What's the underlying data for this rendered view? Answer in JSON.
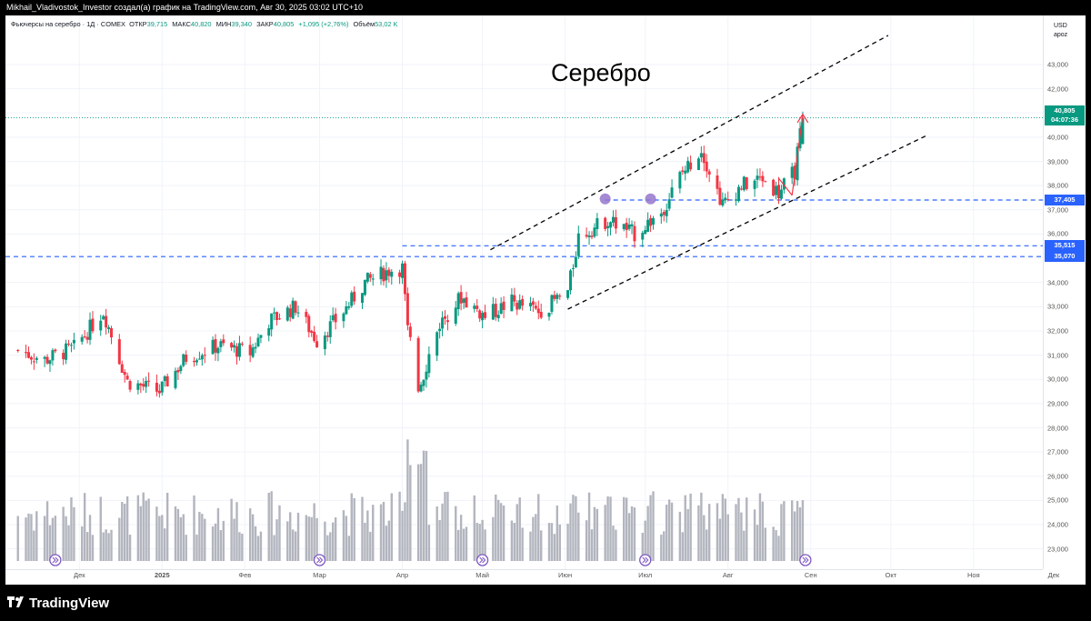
{
  "header": {
    "text": "Mikhail_Vladivostok_Investor создал(а) график на TradingView.com, Авг 30, 2025 03:02 UTC+10"
  },
  "legend": {
    "symbol": "Фьючерсы на серебро · 1Д · COMEX",
    "open_label": "ОТКР",
    "open": "39,715",
    "high_label": "МАКС",
    "high": "40,820",
    "low_label": "МИН",
    "low": "39,340",
    "close_label": "ЗАКР",
    "close": "40,805",
    "change": "+1,095 (+2,76%)",
    "volume_label": "Объём",
    "volume": "53,02 K"
  },
  "currency": {
    "code": "USD",
    "unit": "apoz"
  },
  "last_price": {
    "price": "40,805",
    "countdown": "04:07:36"
  },
  "annotation_title": "Серебро",
  "footer": {
    "brand": "TradingView"
  },
  "colors": {
    "up": "#089981",
    "down": "#f23645",
    "volume": "#b2b5be",
    "level": "#2962ff",
    "channel": "#000000",
    "arrow": "#f23645",
    "marker": "#9575cd"
  },
  "chart_data": {
    "type": "candlestick",
    "instrument": "Silver futures, COMEX, 1D",
    "y_axis": {
      "range": [
        22.5,
        44.2
      ],
      "ticks": [
        "23,000",
        "24,000",
        "25,000",
        "26,000",
        "27,000",
        "28,000",
        "29,000",
        "30,000",
        "31,000",
        "32,000",
        "33,000",
        "34,000",
        "35,000",
        "36,000",
        "37,000",
        "38,000",
        "39,000",
        "40,000",
        "41,000",
        "42,000",
        "43,000"
      ]
    },
    "x_axis": {
      "ticks": [
        "Дек",
        "2025",
        "Фев",
        "Мар",
        "Апр",
        "Май",
        "Июн",
        "Июл",
        "Авг",
        "Сен",
        "Окт",
        "Ноя",
        "Дек"
      ]
    },
    "price_levels": [
      {
        "label": "37,405",
        "value": 37.405
      },
      {
        "label": "35,515",
        "value": 35.515
      },
      {
        "label": "35,070",
        "value": 35.07
      }
    ],
    "close_path": [
      {
        "date": "2024-11-08",
        "close": 31.2
      },
      {
        "date": "2024-11-18",
        "close": 30.8
      },
      {
        "date": "2024-11-29",
        "close": 31.3
      },
      {
        "date": "2024-12-10",
        "close": 32.8
      },
      {
        "date": "2024-12-19",
        "close": 29.9
      },
      {
        "date": "2024-12-31",
        "close": 29.5
      },
      {
        "date": "2025-01-10",
        "close": 30.9
      },
      {
        "date": "2025-01-22",
        "close": 31.4
      },
      {
        "date": "2025-02-03",
        "close": 31.1
      },
      {
        "date": "2025-02-10",
        "close": 32.4
      },
      {
        "date": "2025-02-20",
        "close": 33.0
      },
      {
        "date": "2025-02-28",
        "close": 31.6
      },
      {
        "date": "2025-03-10",
        "close": 32.8
      },
      {
        "date": "2025-03-18",
        "close": 34.0
      },
      {
        "date": "2025-03-27",
        "close": 34.5
      },
      {
        "date": "2025-04-01",
        "close": 34.6
      },
      {
        "date": "2025-04-03",
        "close": 32.0
      },
      {
        "date": "2025-04-07",
        "close": 29.6
      },
      {
        "date": "2025-04-15",
        "close": 32.3
      },
      {
        "date": "2025-04-23",
        "close": 33.4
      },
      {
        "date": "2025-05-02",
        "close": 32.6
      },
      {
        "date": "2025-05-12",
        "close": 33.2
      },
      {
        "date": "2025-05-22",
        "close": 32.8
      },
      {
        "date": "2025-06-02",
        "close": 33.6
      },
      {
        "date": "2025-06-06",
        "close": 35.9
      },
      {
        "date": "2025-06-17",
        "close": 36.6
      },
      {
        "date": "2025-06-27",
        "close": 36.0
      },
      {
        "date": "2025-07-07",
        "close": 36.9
      },
      {
        "date": "2025-07-14",
        "close": 38.4
      },
      {
        "date": "2025-07-22",
        "close": 39.5
      },
      {
        "date": "2025-07-30",
        "close": 37.2
      },
      {
        "date": "2025-08-06",
        "close": 38.0
      },
      {
        "date": "2025-08-14",
        "close": 38.3
      },
      {
        "date": "2025-08-20",
        "close": 37.7
      },
      {
        "date": "2025-08-26",
        "close": 38.6
      },
      {
        "date": "2025-08-29",
        "close": 40.805
      }
    ],
    "volume_profile": "daily volume bars, peak in early April 2025",
    "channel": "ascending parallel channel drawn with dashed black lines from June lows/highs",
    "annotations": [
      "red arrow pointing up near 41,000",
      "two purple circle markers near 37,405 in June and July"
    ]
  }
}
